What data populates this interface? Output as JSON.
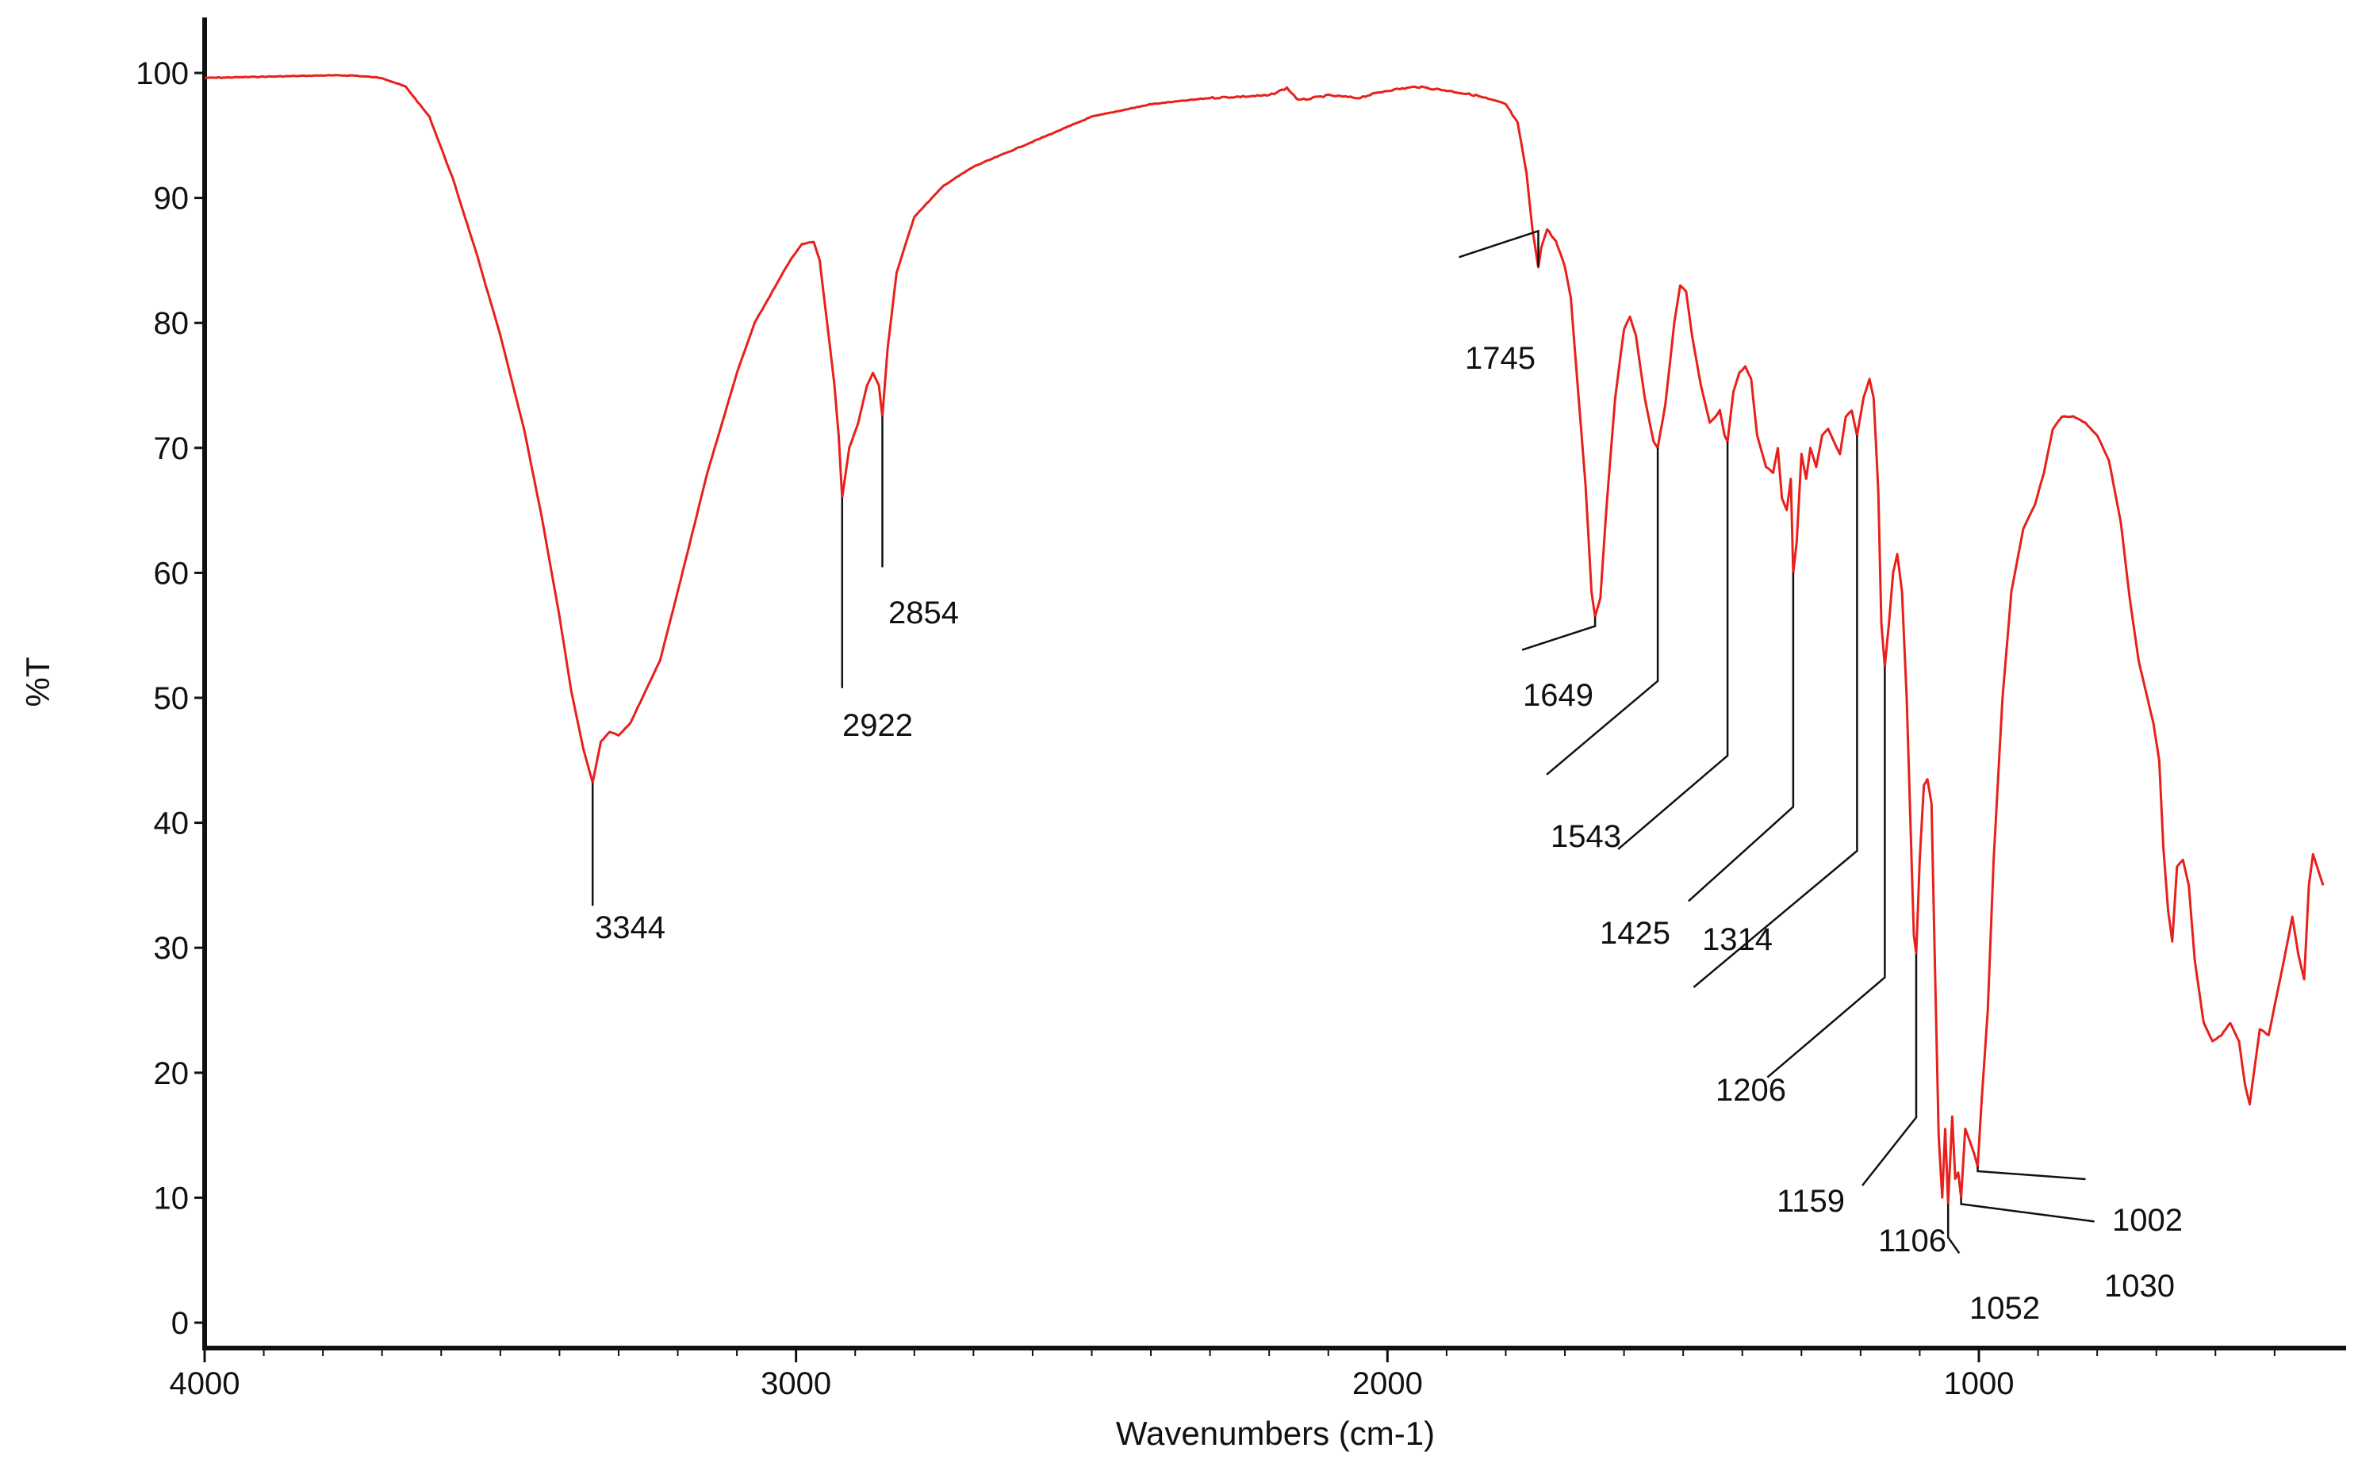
{
  "chart_data": {
    "type": "line",
    "title": "",
    "xlabel": "Wavenumbers (cm-1)",
    "ylabel": "%T",
    "xlim": [
      4000,
      400
    ],
    "ylim": [
      0,
      105
    ],
    "x_ticks": [
      "4000",
      "3000",
      "2000",
      "1000"
    ],
    "y_ticks": [
      "0",
      "10",
      "20",
      "30",
      "40",
      "50",
      "60",
      "70",
      "80",
      "90",
      "100"
    ],
    "grid": false,
    "series": [
      {
        "color": "#e8201b",
        "points": [
          [
            4000,
            99.6
          ],
          [
            3900,
            99.7
          ],
          [
            3800,
            99.8
          ],
          [
            3750,
            99.8
          ],
          [
            3700,
            99.6
          ],
          [
            3660,
            98.9
          ],
          [
            3620,
            96.5
          ],
          [
            3580,
            91.5
          ],
          [
            3540,
            85.5
          ],
          [
            3500,
            79.0
          ],
          [
            3460,
            71.5
          ],
          [
            3430,
            64.5
          ],
          [
            3400,
            56.5
          ],
          [
            3380,
            50.5
          ],
          [
            3360,
            46.0
          ],
          [
            3344,
            43.2
          ],
          [
            3330,
            46.5
          ],
          [
            3315,
            47.3
          ],
          [
            3300,
            47.0
          ],
          [
            3280,
            48.0
          ],
          [
            3250,
            51.0
          ],
          [
            3230,
            53.0
          ],
          [
            3200,
            58.5
          ],
          [
            3150,
            68.0
          ],
          [
            3100,
            76.0
          ],
          [
            3070,
            80.0
          ],
          [
            3040,
            82.5
          ],
          [
            3010,
            85.0
          ],
          [
            2990,
            86.3
          ],
          [
            2970,
            86.5
          ],
          [
            2960,
            85.0
          ],
          [
            2945,
            79.0
          ],
          [
            2935,
            75.0
          ],
          [
            2928,
            71.0
          ],
          [
            2922,
            66.0
          ],
          [
            2910,
            70.0
          ],
          [
            2895,
            72.0
          ],
          [
            2880,
            75.0
          ],
          [
            2870,
            76.0
          ],
          [
            2860,
            75.0
          ],
          [
            2854,
            72.5
          ],
          [
            2845,
            78.0
          ],
          [
            2830,
            84.0
          ],
          [
            2800,
            88.5
          ],
          [
            2750,
            91.0
          ],
          [
            2700,
            92.5
          ],
          [
            2600,
            94.5
          ],
          [
            2500,
            96.5
          ],
          [
            2400,
            97.5
          ],
          [
            2300,
            98.0
          ],
          [
            2200,
            98.2
          ],
          [
            2170,
            98.8
          ],
          [
            2150,
            97.8
          ],
          [
            2100,
            98.2
          ],
          [
            2050,
            98.0
          ],
          [
            2000,
            98.6
          ],
          [
            1950,
            98.9
          ],
          [
            1900,
            98.6
          ],
          [
            1850,
            98.2
          ],
          [
            1800,
            97.5
          ],
          [
            1780,
            96.0
          ],
          [
            1765,
            92.0
          ],
          [
            1755,
            87.5
          ],
          [
            1745,
            84.5
          ],
          [
            1740,
            86.0
          ],
          [
            1730,
            87.5
          ],
          [
            1715,
            86.5
          ],
          [
            1700,
            84.5
          ],
          [
            1690,
            82.0
          ],
          [
            1680,
            76.0
          ],
          [
            1665,
            67.0
          ],
          [
            1655,
            58.5
          ],
          [
            1649,
            56.5
          ],
          [
            1640,
            58.0
          ],
          [
            1630,
            65.0
          ],
          [
            1615,
            74.0
          ],
          [
            1600,
            79.5
          ],
          [
            1590,
            80.5
          ],
          [
            1580,
            79.0
          ],
          [
            1565,
            74.0
          ],
          [
            1550,
            70.5
          ],
          [
            1543,
            70.0
          ],
          [
            1530,
            73.5
          ],
          [
            1515,
            80.0
          ],
          [
            1505,
            83.0
          ],
          [
            1495,
            82.5
          ],
          [
            1485,
            79.0
          ],
          [
            1470,
            75.0
          ],
          [
            1455,
            72.0
          ],
          [
            1445,
            72.5
          ],
          [
            1438,
            73.0
          ],
          [
            1430,
            71.0
          ],
          [
            1425,
            70.5
          ],
          [
            1415,
            74.5
          ],
          [
            1405,
            76.0
          ],
          [
            1395,
            76.5
          ],
          [
            1385,
            75.5
          ],
          [
            1375,
            71.0
          ],
          [
            1360,
            68.5
          ],
          [
            1348,
            68.0
          ],
          [
            1340,
            70.0
          ],
          [
            1333,
            66.0
          ],
          [
            1325,
            65.0
          ],
          [
            1318,
            67.5
          ],
          [
            1314,
            60.0
          ],
          [
            1308,
            62.5
          ],
          [
            1300,
            69.5
          ],
          [
            1292,
            67.5
          ],
          [
            1285,
            70.0
          ],
          [
            1275,
            68.5
          ],
          [
            1265,
            71.0
          ],
          [
            1255,
            71.5
          ],
          [
            1245,
            70.5
          ],
          [
            1235,
            69.5
          ],
          [
            1225,
            72.5
          ],
          [
            1215,
            73.0
          ],
          [
            1206,
            71.0
          ],
          [
            1195,
            74.0
          ],
          [
            1185,
            75.5
          ],
          [
            1178,
            74.0
          ],
          [
            1170,
            66.5
          ],
          [
            1165,
            56.0
          ],
          [
            1159,
            52.5
          ],
          [
            1152,
            56.0
          ],
          [
            1145,
            60.0
          ],
          [
            1138,
            61.5
          ],
          [
            1130,
            58.5
          ],
          [
            1122,
            50.0
          ],
          [
            1115,
            39.0
          ],
          [
            1110,
            31.0
          ],
          [
            1106,
            29.5
          ],
          [
            1100,
            37.0
          ],
          [
            1093,
            43.0
          ],
          [
            1087,
            43.5
          ],
          [
            1080,
            41.5
          ],
          [
            1075,
            30.0
          ],
          [
            1068,
            15.0
          ],
          [
            1062,
            10.0
          ],
          [
            1057,
            15.5
          ],
          [
            1052,
            9.5
          ],
          [
            1045,
            16.5
          ],
          [
            1040,
            11.5
          ],
          [
            1035,
            12.0
          ],
          [
            1030,
            10.0
          ],
          [
            1023,
            15.5
          ],
          [
            1015,
            14.5
          ],
          [
            1008,
            13.5
          ],
          [
            1002,
            12.5
          ],
          [
            995,
            18.0
          ],
          [
            985,
            25.0
          ],
          [
            975,
            37.0
          ],
          [
            960,
            50.0
          ],
          [
            945,
            58.5
          ],
          [
            925,
            63.5
          ],
          [
            905,
            65.5
          ],
          [
            890,
            68.0
          ],
          [
            875,
            71.5
          ],
          [
            860,
            72.5
          ],
          [
            840,
            72.5
          ],
          [
            820,
            72.0
          ],
          [
            800,
            71.0
          ],
          [
            780,
            69.0
          ],
          [
            760,
            64.0
          ],
          [
            745,
            58.0
          ],
          [
            730,
            53.0
          ],
          [
            715,
            50.0
          ],
          [
            705,
            48.0
          ],
          [
            695,
            45.0
          ],
          [
            688,
            38.0
          ],
          [
            680,
            33.0
          ],
          [
            673,
            30.5
          ],
          [
            665,
            36.5
          ],
          [
            655,
            37.0
          ],
          [
            645,
            35.0
          ],
          [
            635,
            29.0
          ],
          [
            620,
            24.0
          ],
          [
            605,
            22.5
          ],
          [
            590,
            23.0
          ],
          [
            575,
            24.0
          ],
          [
            560,
            22.5
          ],
          [
            550,
            19.0
          ],
          [
            542,
            17.5
          ],
          [
            535,
            20.0
          ],
          [
            525,
            23.5
          ],
          [
            510,
            23.0
          ],
          [
            495,
            26.5
          ],
          [
            480,
            30.0
          ],
          [
            470,
            32.5
          ],
          [
            460,
            29.5
          ],
          [
            450,
            27.5
          ],
          [
            442,
            35.0
          ],
          [
            435,
            37.5
          ],
          [
            425,
            36.0
          ],
          [
            418,
            35.0
          ]
        ]
      }
    ],
    "annotations": [
      {
        "text": "3344",
        "x": 3344,
        "y": 43.2
      },
      {
        "text": "2922",
        "x": 2922,
        "y": 66.0
      },
      {
        "text": "2854",
        "x": 2854,
        "y": 72.5
      },
      {
        "text": "1745",
        "x": 1745,
        "y": 84.5
      },
      {
        "text": "1649",
        "x": 1649,
        "y": 56.5
      },
      {
        "text": "1543",
        "x": 1543,
        "y": 70.0
      },
      {
        "text": "1425",
        "x": 1425,
        "y": 70.5
      },
      {
        "text": "1314",
        "x": 1314,
        "y": 60.0
      },
      {
        "text": "1206",
        "x": 1206,
        "y": 71.0
      },
      {
        "text": "1159",
        "x": 1159,
        "y": 52.5
      },
      {
        "text": "1106",
        "x": 1106,
        "y": 29.5
      },
      {
        "text": "1052",
        "x": 1052,
        "y": 9.5
      },
      {
        "text": "1030",
        "x": 1030,
        "y": 10.0
      },
      {
        "text": "1002",
        "x": 1002,
        "y": 12.5
      }
    ]
  }
}
